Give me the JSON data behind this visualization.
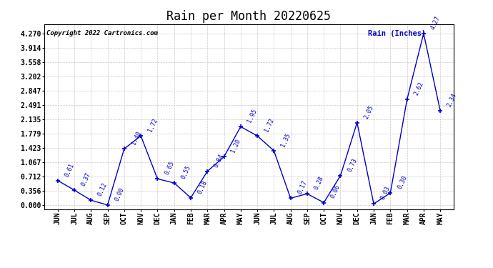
{
  "title": "Rain per Month 20220625",
  "copyright_text": "Copyright 2022 Cartronics.com",
  "legend_label": "Rain (Inches)",
  "months": [
    "JUN",
    "JUL",
    "AUG",
    "SEP",
    "OCT",
    "NOV",
    "DEC",
    "JAN",
    "FEB",
    "MAR",
    "APR",
    "MAY",
    "JUN",
    "JUL",
    "AUG",
    "SEP",
    "OCT",
    "NOV",
    "DEC",
    "JAN",
    "FEB",
    "MAR",
    "APR",
    "MAY"
  ],
  "values": [
    0.61,
    0.37,
    0.12,
    0.0,
    1.4,
    1.72,
    0.65,
    0.55,
    0.18,
    0.84,
    1.2,
    1.95,
    1.72,
    1.35,
    0.17,
    0.28,
    0.06,
    0.73,
    2.05,
    0.03,
    0.3,
    2.62,
    4.27,
    2.34
  ],
  "line_color": "#0000CC",
  "marker_color": "#0000CC",
  "bg_color": "#ffffff",
  "grid_color": "#bbbbbb",
  "title_fontsize": 12,
  "tick_fontsize": 7,
  "yticks": [
    0.0,
    0.356,
    0.712,
    1.067,
    1.423,
    1.779,
    2.135,
    2.491,
    2.847,
    3.202,
    3.558,
    3.914,
    4.27
  ],
  "ylim": [
    -0.1,
    4.5
  ],
  "annot_fontsize": 6,
  "annot_color": "#0000CC",
  "copyright_fontsize": 6.5,
  "legend_fontsize": 7.5
}
